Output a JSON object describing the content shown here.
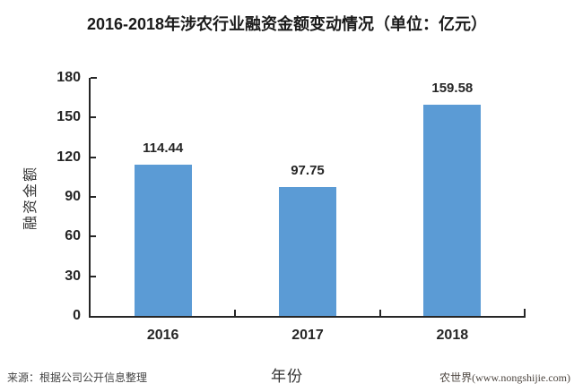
{
  "chart_data": {
    "type": "bar",
    "title": "2016-2018年涉农行业融资金额变动情况（单位：亿元）",
    "categories": [
      "2016",
      "2017",
      "2018"
    ],
    "values": [
      114.44,
      97.75,
      159.58
    ],
    "value_labels": [
      "114.44",
      "97.75",
      "159.58"
    ],
    "xlabel": "年份",
    "ylabel": "融资金额",
    "ylim": [
      0,
      180
    ],
    "yticks": [
      0,
      30,
      60,
      90,
      120,
      150,
      180
    ],
    "grid": false,
    "legend": "none",
    "bar_color": "#5B9BD5",
    "axis_color": "#262626",
    "label_color": "#262626"
  },
  "footer": {
    "source": "来源：根据公司公开信息整理",
    "watermark": "农世界(www.nongshijie.com)"
  }
}
